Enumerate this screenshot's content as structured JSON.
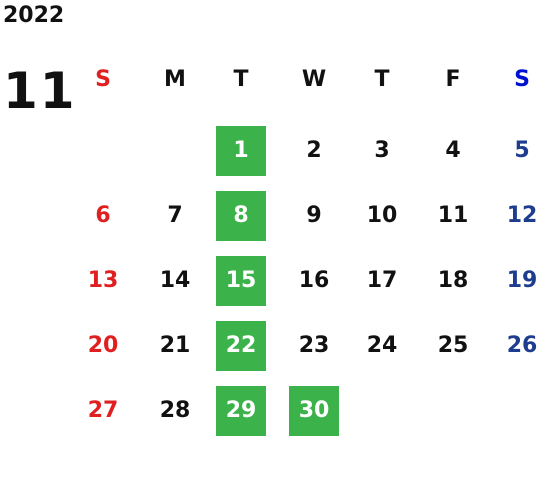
{
  "year": "2022",
  "month": "11",
  "weekdays": [
    "S",
    "M",
    "T",
    "W",
    "T",
    "F",
    "S"
  ],
  "weeks": [
    [
      null,
      null,
      {
        "day": "1",
        "highlight": true
      },
      {
        "day": "2"
      },
      {
        "day": "3"
      },
      {
        "day": "4"
      },
      {
        "day": "5"
      }
    ],
    [
      {
        "day": "6"
      },
      {
        "day": "7"
      },
      {
        "day": "8",
        "highlight": true
      },
      {
        "day": "9"
      },
      {
        "day": "10"
      },
      {
        "day": "11"
      },
      {
        "day": "12"
      }
    ],
    [
      {
        "day": "13"
      },
      {
        "day": "14"
      },
      {
        "day": "15",
        "highlight": true
      },
      {
        "day": "16"
      },
      {
        "day": "17"
      },
      {
        "day": "18"
      },
      {
        "day": "19"
      }
    ],
    [
      {
        "day": "20"
      },
      {
        "day": "21"
      },
      {
        "day": "22",
        "highlight": true
      },
      {
        "day": "23"
      },
      {
        "day": "24"
      },
      {
        "day": "25"
      },
      {
        "day": "26"
      }
    ],
    [
      {
        "day": "27"
      },
      {
        "day": "28"
      },
      {
        "day": "29",
        "highlight": true
      },
      {
        "day": "30",
        "highlight": true
      },
      null,
      null,
      null
    ]
  ]
}
